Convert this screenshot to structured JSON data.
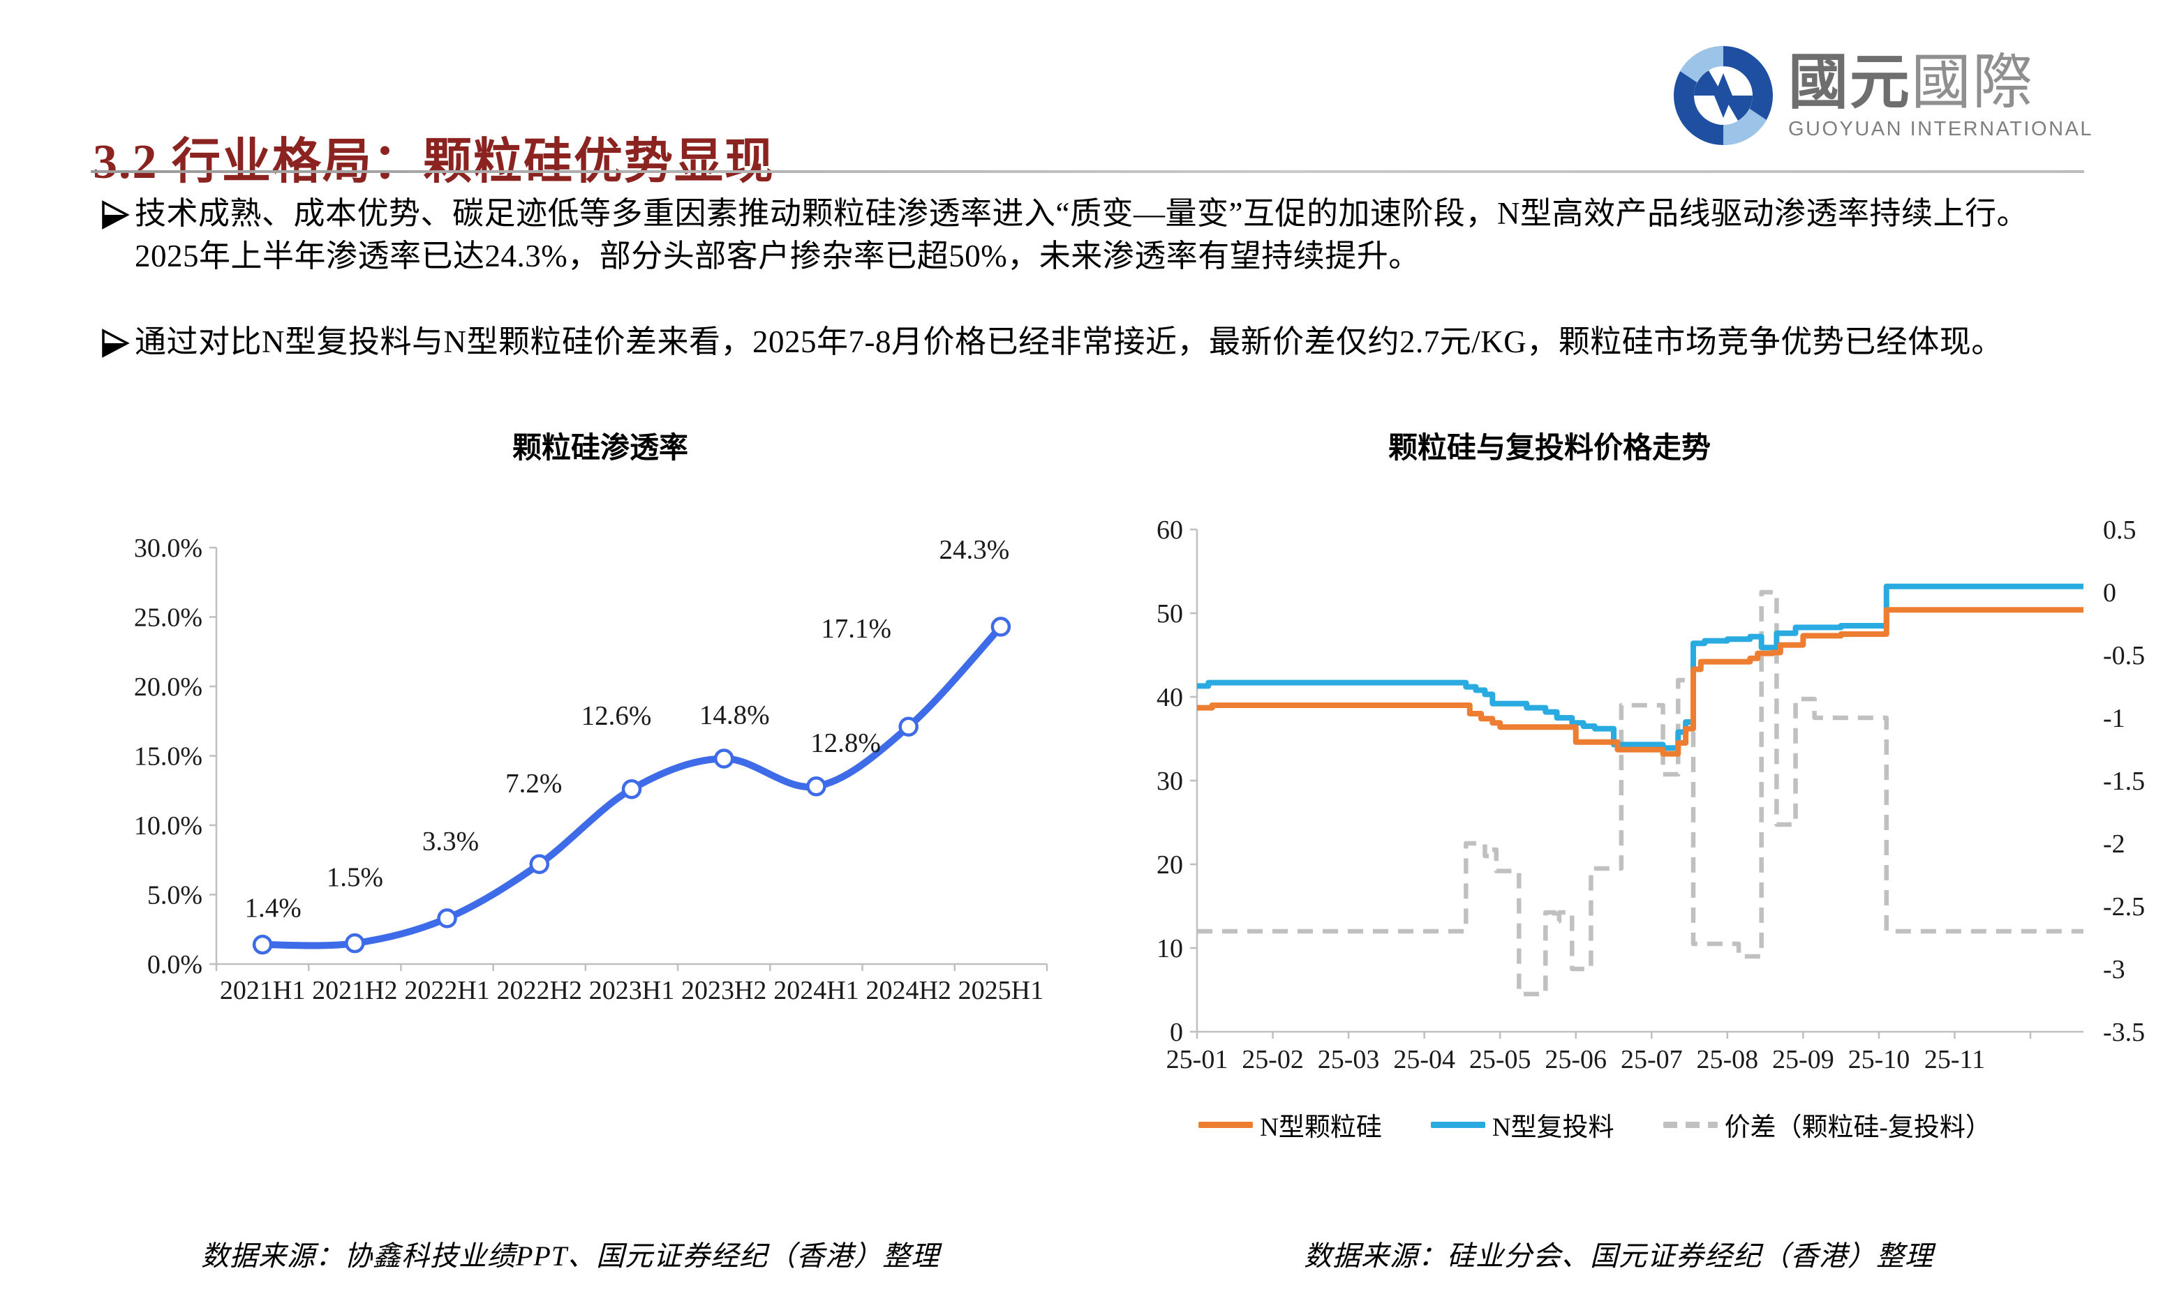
{
  "slide": {
    "title": "3.2 行业格局：颗粒硅优势显现",
    "bullets": [
      "技术成熟、成本优势、碳足迹低等多重因素推动颗粒硅渗透率进入“质变—量变”互促的加速阶段，N型高效产品线驱动渗透率持续上行。2025年上半年渗透率已达24.3%，部分头部客户掺杂率已超50%，未来渗透率有望持续提升。",
      "通过对比N型复投料与N型颗粒硅价差来看，2025年7-8月价格已经非常接近，最新价差仅约2.7元/KG，颗粒硅市场竞争优势已经体现。"
    ],
    "bullet_marker_icon": "arrowhead-right-icon",
    "sources": {
      "left": "数据来源：协鑫科技业绩PPT、国元证券经纪（香港）整理",
      "right": "数据来源：硅业分会、国元证券经纪（香港）整理"
    }
  },
  "logo": {
    "mark_icon": "guoyuan-logo-icon",
    "cn_bold": "國元",
    "cn_light": "國際",
    "en": "GUOYUAN INTERNATIONAL"
  },
  "colors": {
    "title_red": "#8B2420",
    "divider_gray": "#ababab",
    "axis_gray": "#BFBFBF",
    "penetration_blue": "#3E6BE8",
    "granular_orange": "#ED7D31",
    "rod_blue": "#29ABE2",
    "spread_gray": "#C0C0C0",
    "logo_dark_blue": "#1E4FA0",
    "logo_light_blue": "#9CC3E8"
  },
  "chart_data": [
    {
      "type": "line",
      "title": "颗粒硅渗透率",
      "categories": [
        "2021H1",
        "2021H2",
        "2022H1",
        "2022H2",
        "2023H1",
        "2023H2",
        "2024H1",
        "2024H2",
        "2025H1"
      ],
      "values": [
        1.4,
        1.5,
        3.3,
        7.2,
        12.6,
        14.8,
        12.8,
        17.1,
        24.3
      ],
      "point_labels": [
        "1.4%",
        "1.5%",
        "3.3%",
        "7.2%",
        "12.6%",
        "14.8%",
        "12.8%",
        "17.1%",
        "24.3%"
      ],
      "yticks": [
        "0.0%",
        "5.0%",
        "10.0%",
        "15.0%",
        "20.0%",
        "25.0%",
        "30.0%"
      ],
      "ylim": [
        0,
        30
      ],
      "grid": false,
      "legend": "none",
      "marker": "open-circle",
      "line_color": "#3E6BE8"
    },
    {
      "type": "line",
      "title": "颗粒硅与复投料价格走势",
      "x_ticks": [
        "25-01",
        "25-02",
        "25-03",
        "25-04",
        "25-05",
        "25-06",
        "25-07",
        "25-08",
        "25-09",
        "25-10",
        "25-11"
      ],
      "x_range": [
        1,
        12.7
      ],
      "left_axis": {
        "lim": [
          0,
          60
        ],
        "ticks_top_to_bottom": [
          "60",
          "50",
          "40",
          "30",
          "20",
          "10",
          "0"
        ]
      },
      "right_axis": {
        "lim": [
          -3.5,
          0.5
        ],
        "ticks_top_to_bottom": [
          "0.5",
          "0",
          "-0.5",
          "-1",
          "-1.5",
          "-2",
          "-2.5",
          "-3",
          "-3.5"
        ]
      },
      "grid": false,
      "legend_position": "bottom",
      "series": [
        {
          "name": "N型颗粒硅",
          "color": "#ED7D31",
          "dash": false,
          "axis": "left",
          "step_points": [
            [
              1.0,
              38.7
            ],
            [
              1.2,
              39.0
            ],
            [
              4.5,
              39.0
            ],
            [
              4.6,
              38.0
            ],
            [
              4.75,
              37.4
            ],
            [
              4.9,
              36.9
            ],
            [
              5.0,
              36.4
            ],
            [
              5.95,
              36.4
            ],
            [
              6.0,
              34.6
            ],
            [
              6.5,
              34.6
            ],
            [
              6.55,
              33.7
            ],
            [
              7.1,
              33.7
            ],
            [
              7.15,
              33.2
            ],
            [
              7.3,
              33.2
            ],
            [
              7.35,
              34.5
            ],
            [
              7.45,
              36.2
            ],
            [
              7.55,
              43.3
            ],
            [
              7.65,
              44.2
            ],
            [
              8.3,
              44.6
            ],
            [
              8.4,
              45.2
            ],
            [
              8.6,
              45.3
            ],
            [
              8.7,
              46.2
            ],
            [
              9.0,
              47.3
            ],
            [
              9.5,
              47.5
            ],
            [
              10.1,
              50.4
            ],
            [
              12.7,
              50.4
            ]
          ]
        },
        {
          "name": "N型复投料",
          "color": "#29ABE2",
          "dash": false,
          "axis": "left",
          "step_points": [
            [
              1.0,
              41.3
            ],
            [
              1.15,
              41.7
            ],
            [
              4.5,
              41.7
            ],
            [
              4.55,
              41.2
            ],
            [
              4.68,
              40.8
            ],
            [
              4.8,
              40.3
            ],
            [
              4.9,
              39.2
            ],
            [
              5.3,
              39.2
            ],
            [
              5.35,
              38.7
            ],
            [
              5.6,
              38.2
            ],
            [
              5.75,
              37.5
            ],
            [
              5.95,
              36.9
            ],
            [
              6.1,
              36.5
            ],
            [
              6.25,
              36.2
            ],
            [
              6.5,
              34.3
            ],
            [
              7.1,
              34.3
            ],
            [
              7.15,
              33.9
            ],
            [
              7.3,
              33.9
            ],
            [
              7.35,
              35.8
            ],
            [
              7.45,
              37.0
            ],
            [
              7.55,
              46.4
            ],
            [
              7.7,
              46.7
            ],
            [
              8.0,
              46.9
            ],
            [
              8.3,
              47.2
            ],
            [
              8.45,
              45.9
            ],
            [
              8.65,
              47.6
            ],
            [
              8.9,
              48.3
            ],
            [
              9.5,
              48.5
            ],
            [
              10.1,
              53.2
            ],
            [
              12.7,
              53.2
            ]
          ]
        },
        {
          "name": "价差（颗粒硅-复投料）",
          "color": "#C0C0C0",
          "dash": true,
          "axis": "right",
          "step_points": [
            [
              1.0,
              -2.7
            ],
            [
              4.5,
              -2.7
            ],
            [
              4.55,
              -2.0
            ],
            [
              4.78,
              -2.0
            ],
            [
              4.8,
              -2.1
            ],
            [
              4.88,
              -2.05
            ],
            [
              4.95,
              -2.22
            ],
            [
              5.2,
              -2.22
            ],
            [
              5.25,
              -3.2
            ],
            [
              5.55,
              -3.2
            ],
            [
              5.6,
              -2.55
            ],
            [
              5.72,
              -2.62
            ],
            [
              5.78,
              -2.55
            ],
            [
              5.9,
              -2.55
            ],
            [
              5.95,
              -3.0
            ],
            [
              6.15,
              -3.0
            ],
            [
              6.2,
              -2.2
            ],
            [
              6.55,
              -2.2
            ],
            [
              6.6,
              -0.9
            ],
            [
              7.1,
              -0.9
            ],
            [
              7.15,
              -1.45
            ],
            [
              7.3,
              -1.45
            ],
            [
              7.35,
              -0.7
            ],
            [
              7.5,
              -0.7
            ],
            [
              7.55,
              -2.8
            ],
            [
              8.1,
              -2.8
            ],
            [
              8.15,
              -2.9
            ],
            [
              8.4,
              -2.9
            ],
            [
              8.45,
              0.0
            ],
            [
              8.6,
              0.0
            ],
            [
              8.65,
              -1.85
            ],
            [
              8.85,
              -1.85
            ],
            [
              8.9,
              -0.85
            ],
            [
              9.1,
              -0.85
            ],
            [
              9.15,
              -1.0
            ],
            [
              10.0,
              -1.0
            ],
            [
              10.1,
              -2.7
            ],
            [
              12.7,
              -2.7
            ]
          ]
        }
      ]
    }
  ]
}
